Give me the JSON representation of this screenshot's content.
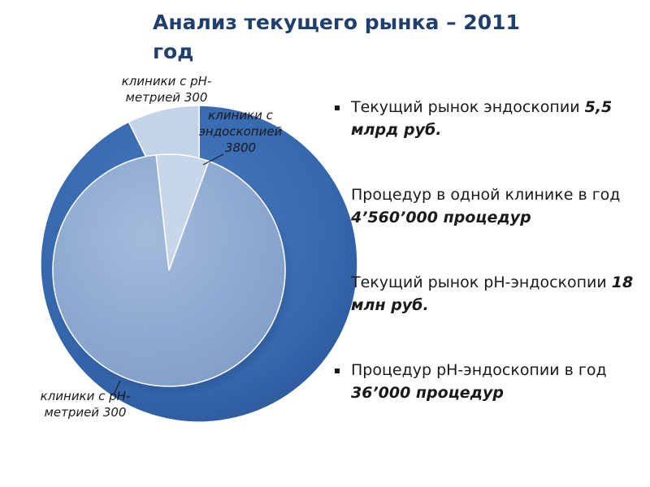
{
  "title": "Анализ текущего рынка – 2011 год",
  "chart_data": [
    {
      "type": "pie",
      "slices": [
        {
          "label": "клиники с эндоскопией 3800",
          "value": 3800
        },
        {
          "label": "клиники с pH-метрией 300",
          "value": 300
        }
      ],
      "colors": [
        "#3567ad",
        "#c5d3e6"
      ]
    },
    {
      "type": "pie",
      "slices": [
        {
          "label": "клиники с эндоскопией 3800",
          "value": 3800
        },
        {
          "label": "клиники с pH-метрией 300",
          "value": 300
        }
      ],
      "colors": [
        "#8ea9cf",
        "#c8d6ea"
      ]
    }
  ],
  "labels": {
    "outer_ph": "клиники с pH-метрией 300",
    "endo": "клиники с эндоскопией 3800",
    "inner_ph": "клиники с pH-метрией 300"
  },
  "bullets": [
    {
      "marker": true,
      "text": " Текущий рынок эндоскопии ",
      "bold": "5,5 млрд руб."
    },
    {
      "marker": false,
      "text": "Процедур в одной клинике в год ",
      "bold": "4’560’000 процедур"
    },
    {
      "marker": false,
      "text": "Текущий рынок  pH-эндоскопии ",
      "bold": "18 млн руб."
    },
    {
      "marker": true,
      "text": "Процедур pH-эндоскопии в год  ",
      "bold": "36’000 процедур"
    }
  ]
}
